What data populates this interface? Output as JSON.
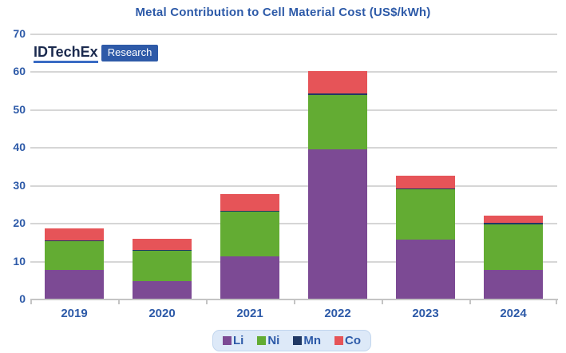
{
  "title": "Metal Contribution to Cell Material Cost (US$/kWh)",
  "logo": {
    "brand": "IDTechEx",
    "badge": "Research"
  },
  "colors": {
    "title_text": "#2d5aa8",
    "axis_text": "#2d5aa8",
    "gridline": "#d6d6d6",
    "axis_line": "#c4c4c4",
    "legend_bg": "#dde9f8",
    "legend_border": "#c2d6ee",
    "logo_brand_text": "#1b2a4e",
    "logo_underline": "#3a6bc4",
    "logo_badge_bg": "#2e5aa8"
  },
  "chart_data": {
    "type": "bar",
    "stacked": true,
    "title": "Metal Contribution to Cell Material Cost (US$/kWh)",
    "xlabel": "",
    "ylabel": "",
    "categories": [
      "2019",
      "2020",
      "2021",
      "2022",
      "2023",
      "2024"
    ],
    "series": [
      {
        "name": "Li",
        "color": "#7c4a94",
        "values": [
          7.9,
          4.8,
          11.4,
          39.6,
          15.9,
          7.9
        ]
      },
      {
        "name": "Ni",
        "color": "#63ac33",
        "values": [
          7.5,
          8.0,
          11.8,
          14.4,
          13.2,
          12.0
        ]
      },
      {
        "name": "Mn",
        "color": "#203864",
        "values": [
          0.3,
          0.3,
          0.3,
          0.3,
          0.3,
          0.3
        ]
      },
      {
        "name": "Co",
        "color": "#e65458",
        "values": [
          3.0,
          3.0,
          4.4,
          6.1,
          3.2,
          1.9
        ]
      }
    ],
    "totals": [
      18.7,
      16.1,
      27.9,
      60.4,
      32.6,
      22.1
    ],
    "ylim": [
      0,
      70
    ],
    "ytick_step": 10,
    "grid": true,
    "legend_position": "bottom",
    "legend_entries": [
      "Li",
      "Ni",
      "Mn",
      "Co"
    ]
  }
}
